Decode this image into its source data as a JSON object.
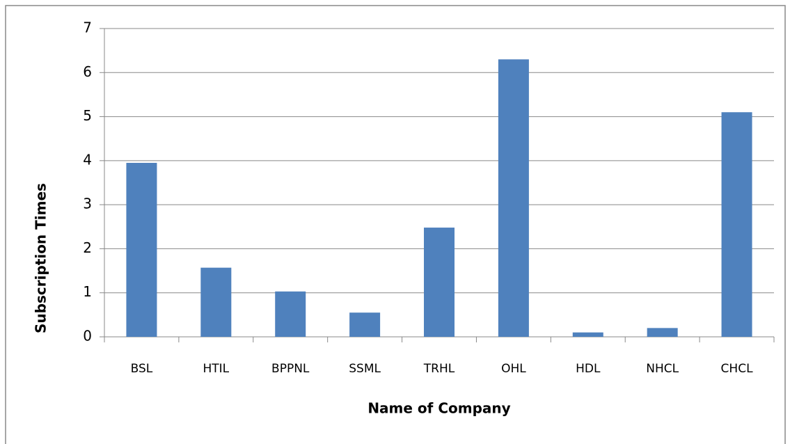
{
  "chart_data": {
    "type": "bar",
    "x_label": "Name of Company",
    "y_label": "Subscription Times",
    "categories": [
      "BSL",
      "HTIL",
      "BPPNL",
      "SSML",
      "TRHL",
      "OHL",
      "HDL",
      "NHCL",
      "CHCL"
    ],
    "values": [
      3.95,
      1.57,
      1.03,
      0.55,
      2.48,
      6.3,
      0.1,
      0.2,
      5.1
    ],
    "color": "#4f81bd",
    "ylim": [
      0,
      7
    ],
    "yticks": [
      0,
      1,
      2,
      3,
      4,
      5,
      6,
      7
    ],
    "grid": true
  }
}
